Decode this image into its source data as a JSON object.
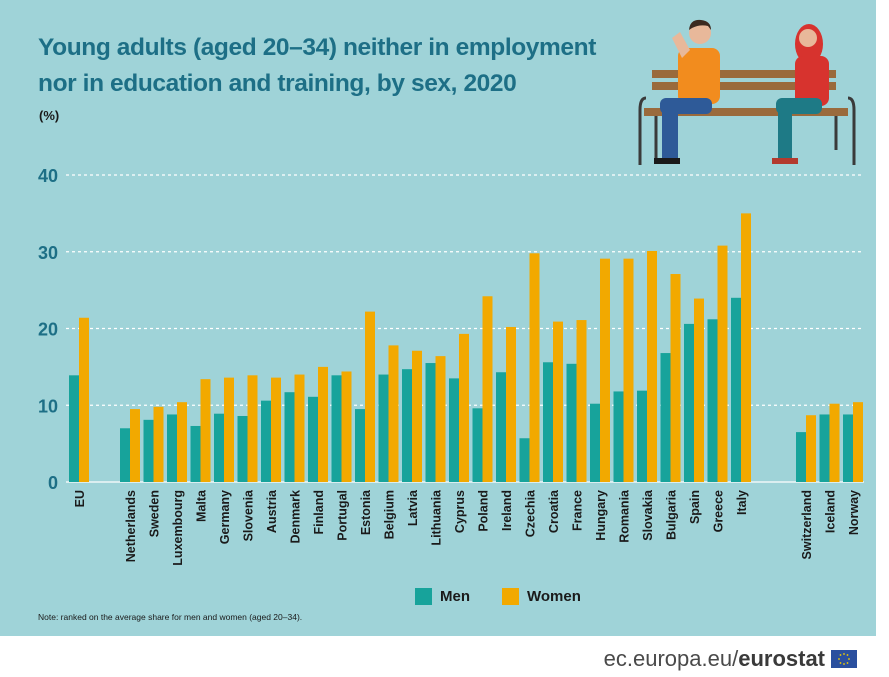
{
  "page": {
    "title_line1": "Young adults (aged 20–34) neither in employment",
    "title_line2": "nor in education and training, by sex, 2020",
    "unit": "(%)",
    "note": "Note: ranked on the average share for men and women (aged 20–34).",
    "footer_url": "ec.europa.eu/",
    "footer_brand": "eurostat",
    "background_color": "#9fd3d8"
  },
  "chart_data": {
    "type": "bar",
    "categories": [
      "EU",
      "Netherlands",
      "Sweden",
      "Luxembourg",
      "Malta",
      "Germany",
      "Slovenia",
      "Austria",
      "Denmark",
      "Finland",
      "Portugal",
      "Estonia",
      "Belgium",
      "Latvia",
      "Lithuania",
      "Cyprus",
      "Poland",
      "Ireland",
      "Czechia",
      "Croatia",
      "France",
      "Hungary",
      "Romania",
      "Slovakia",
      "Bulgaria",
      "Spain",
      "Greece",
      "Italy",
      "Switzerland",
      "Iceland",
      "Norway"
    ],
    "series": [
      {
        "name": "Men",
        "color": "#17a39b",
        "values": [
          13.9,
          7.0,
          8.1,
          8.8,
          7.3,
          8.9,
          8.6,
          10.6,
          11.7,
          11.1,
          13.9,
          9.5,
          14.0,
          14.7,
          15.5,
          13.5,
          9.6,
          14.3,
          5.7,
          15.6,
          15.4,
          10.2,
          11.8,
          11.9,
          16.8,
          20.6,
          21.2,
          24.0,
          6.5,
          8.8,
          8.8
        ]
      },
      {
        "name": "Women",
        "color": "#f2a900",
        "values": [
          21.4,
          9.5,
          9.8,
          10.4,
          13.4,
          13.6,
          13.9,
          13.6,
          14.0,
          15.0,
          14.4,
          22.2,
          17.8,
          17.1,
          16.4,
          19.3,
          24.2,
          20.2,
          29.8,
          20.9,
          21.1,
          29.1,
          29.1,
          30.1,
          27.1,
          23.9,
          30.8,
          35.0,
          8.7,
          10.2,
          10.4
        ]
      }
    ],
    "yticks": [
      "0",
      "10",
      "20",
      "30",
      "40"
    ],
    "ylim": [
      0,
      40
    ],
    "grid": true,
    "legend_position": "bottom"
  }
}
